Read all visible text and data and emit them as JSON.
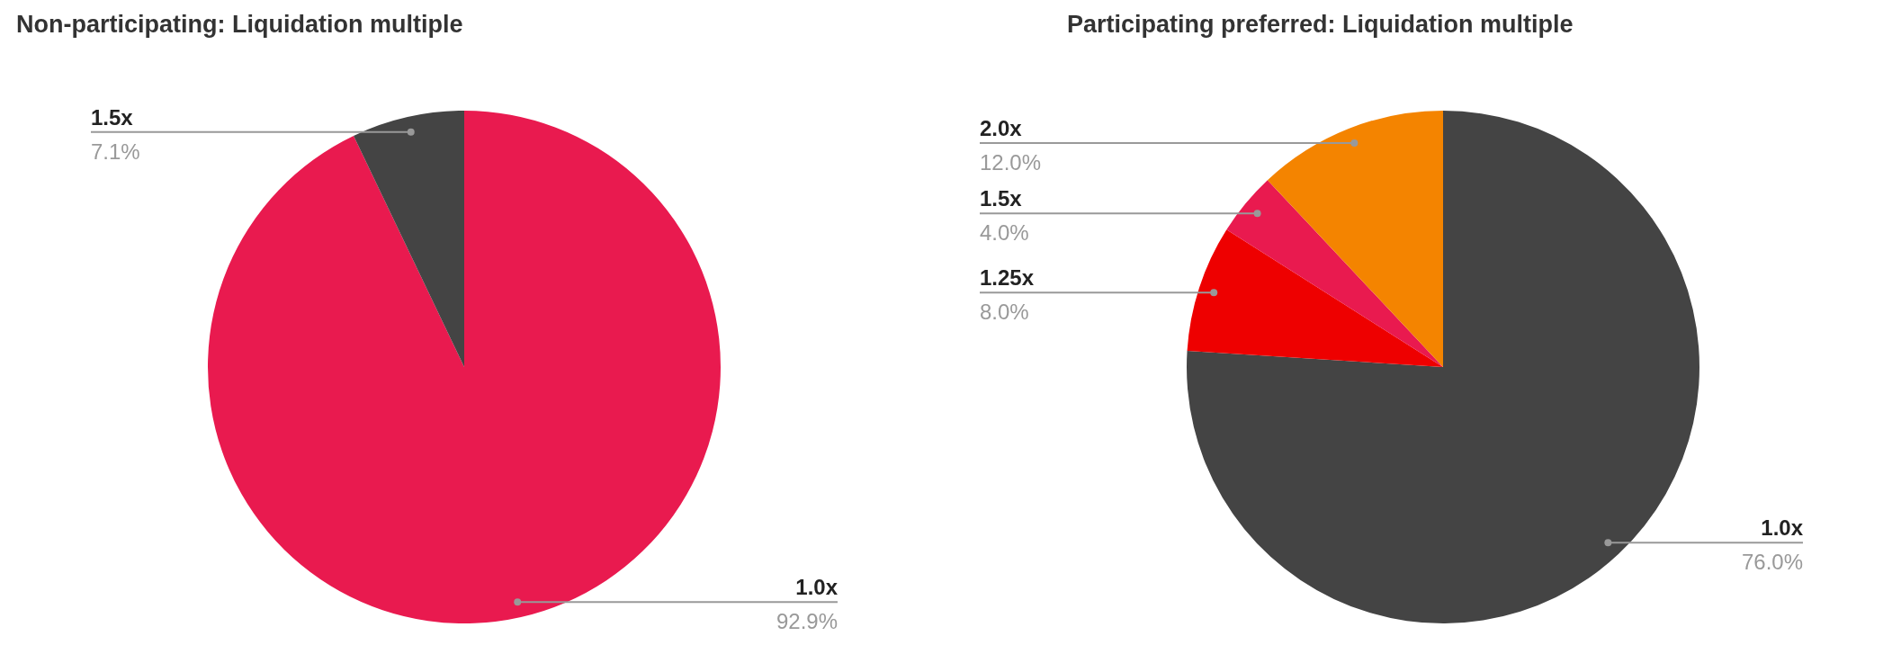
{
  "chart_data": [
    {
      "type": "pie",
      "title": "Non-participating: Liquidation multiple",
      "categories": [
        "1.0x",
        "1.5x"
      ],
      "values": [
        92.9,
        7.1
      ],
      "colors": [
        "#e91a4f",
        "#444444"
      ],
      "value_labels": [
        "92.9%",
        "7.1%"
      ]
    },
    {
      "type": "pie",
      "title": "Participating preferred: Liquidation multiple",
      "categories": [
        "1.0x",
        "1.25x",
        "1.5x",
        "2.0x"
      ],
      "values": [
        76.0,
        8.0,
        4.0,
        12.0
      ],
      "colors": [
        "#444444",
        "#ee0000",
        "#e91a4f",
        "#f48400"
      ],
      "value_labels": [
        "76.0%",
        "8.0%",
        "4.0%",
        "12.0%"
      ]
    }
  ]
}
